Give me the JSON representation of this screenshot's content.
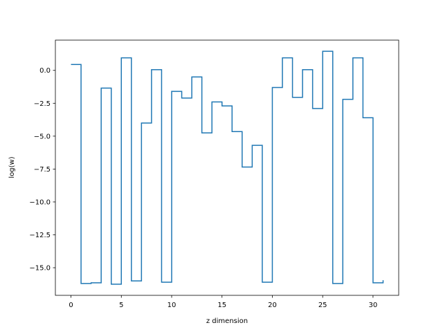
{
  "chart_data": {
    "type": "line",
    "drawstyle": "steps-post",
    "title": "",
    "xlabel": "z dimension",
    "ylabel": "log(w)",
    "xlim": [
      -1.55,
      32.55
    ],
    "ylim": [
      -17.1,
      2.3
    ],
    "grid": false,
    "legend": "none",
    "x_ticks": [
      0,
      5,
      10,
      15,
      20,
      25,
      30
    ],
    "x_tick_labels": [
      "0",
      "5",
      "10",
      "15",
      "20",
      "25",
      "30"
    ],
    "y_ticks": [
      0.0,
      -2.5,
      -5.0,
      -7.5,
      -10.0,
      -12.5,
      -15.0
    ],
    "y_tick_labels": [
      "0.0",
      "−2.5",
      "−5.0",
      "−7.5",
      "−10.0",
      "−12.5",
      "−15.0"
    ],
    "series": [
      {
        "color": "#1f77b4",
        "x": [
          0,
          1,
          2,
          3,
          4,
          5,
          6,
          7,
          8,
          9,
          10,
          11,
          12,
          13,
          14,
          15,
          16,
          17,
          18,
          19,
          20,
          21,
          22,
          23,
          24,
          25,
          26,
          27,
          28,
          29,
          30,
          31
        ],
        "values": [
          0.45,
          -16.2,
          -16.15,
          -1.35,
          -16.25,
          0.95,
          -16.0,
          -4.0,
          0.05,
          -16.1,
          -1.6,
          -2.1,
          -0.5,
          -4.75,
          -2.4,
          -2.7,
          -4.65,
          -7.35,
          -5.7,
          -16.1,
          -1.3,
          0.95,
          -2.05,
          0.05,
          -2.9,
          1.45,
          -16.2,
          -2.2,
          0.95,
          -3.6,
          -16.15,
          -15.95
        ]
      }
    ]
  }
}
